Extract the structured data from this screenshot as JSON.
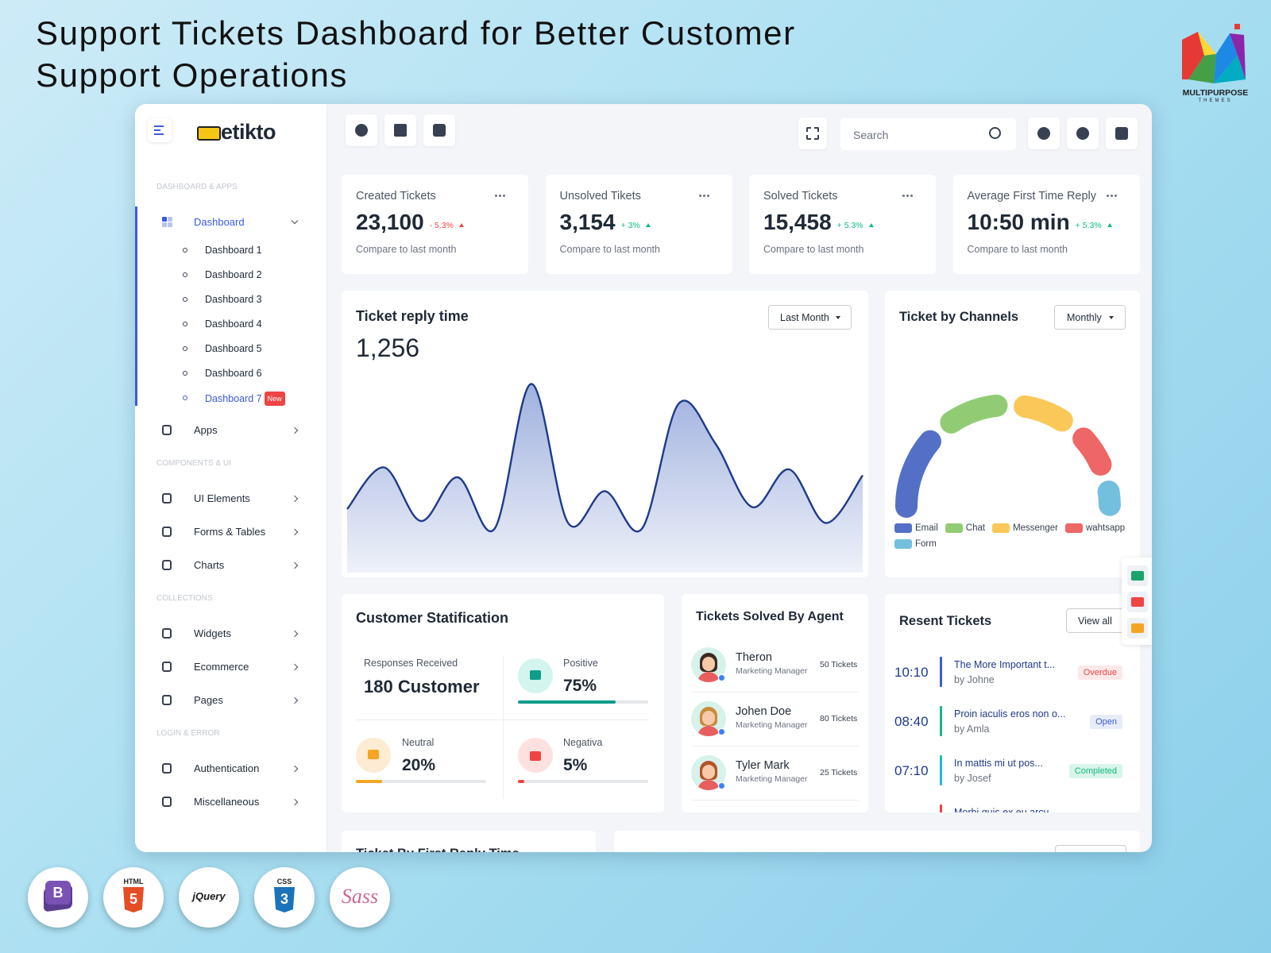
{
  "header": {
    "title_lines": [
      "Support Tickets Dashboard for Better Customer",
      "Support Operations"
    ],
    "brand": "MULTIPURPOSE",
    "brand_sub": "THEMES"
  },
  "app": {
    "logo": "etikto",
    "search_placeholder": "Search",
    "sidebar": [
      {
        "title": "DASHBOARD & APPS",
        "items": [
          {
            "label": "Dashboard",
            "active": true,
            "children": [
              {
                "label": "Dashboard 1"
              },
              {
                "label": "Dashboard 2"
              },
              {
                "label": "Dashboard 3"
              },
              {
                "label": "Dashboard 4"
              },
              {
                "label": "Dashboard 5"
              },
              {
                "label": "Dashboard 6"
              },
              {
                "label": "Dashboard 7",
                "active": true,
                "badge": "New"
              }
            ]
          },
          {
            "label": "Apps"
          }
        ]
      },
      {
        "title": "COMPONENTS & UI",
        "items": [
          {
            "label": "UI Elements"
          },
          {
            "label": "Forms & Tables"
          },
          {
            "label": "Charts"
          }
        ]
      },
      {
        "title": "COLLECTIONS",
        "items": [
          {
            "label": "Widgets"
          },
          {
            "label": "Ecommerce"
          },
          {
            "label": "Pages"
          }
        ]
      },
      {
        "title": "LOGIN & ERROR",
        "items": [
          {
            "label": "Authentication"
          },
          {
            "label": "Miscellaneous"
          }
        ]
      }
    ],
    "stats": [
      {
        "label": "Created Tickets",
        "value": "23,100",
        "change": "- 5.3%",
        "change_color": "#ef4444",
        "note": "Compare to last month"
      },
      {
        "label": "Unsolved Tikets",
        "value": "3,154",
        "change": "+ 3%",
        "change_color": "#10b981",
        "note": "Compare to last month"
      },
      {
        "label": "Solved Tickets",
        "value": "15,458",
        "change": "+ 5.3%",
        "change_color": "#10b981",
        "note": "Compare to last month"
      },
      {
        "label": "Average First Time Reply",
        "value": "10:50 min",
        "change": "+ 5.3%",
        "change_color": "#10b981",
        "note": "Compare to last month"
      }
    ],
    "reply": {
      "title": "Ticket reply time",
      "value": "1,256",
      "filter": "Last Month",
      "chart_data": {
        "type": "area",
        "categories": [
          null,
          null,
          null,
          null,
          null,
          null,
          null,
          null,
          null,
          null,
          null,
          null,
          null,
          null,
          null
        ],
        "values": [
          32,
          53,
          26,
          48,
          22,
          95,
          25,
          41,
          22,
          85,
          65,
          33,
          52,
          25,
          49
        ],
        "ylim": [
          0,
          100
        ],
        "color": "#1e3a8a"
      }
    },
    "channels": {
      "title": "Ticket by Channels",
      "filter": "Monthly",
      "chart_data": {
        "type": "gauge",
        "categories": [
          "Email",
          "Chat",
          "Messenger",
          "wahtsapp",
          "Form"
        ],
        "values": [
          32,
          22,
          18,
          14,
          6
        ],
        "colors": [
          "#5470c6",
          "#91cc75",
          "#fac858",
          "#ee6666",
          "#73c0de"
        ]
      }
    },
    "satisfaction": {
      "title": "Customer Statification",
      "responses_label": "Responses Received",
      "responses": "180 Customer",
      "metrics": [
        {
          "label": "Positive",
          "value": 75,
          "value_label": "75%",
          "color": "#0f9d8a",
          "bg": "#d4f4ee"
        },
        {
          "label": "Neutral",
          "value": 20,
          "value_label": "20%",
          "color": "#f5a524",
          "bg": "#fdebd3"
        },
        {
          "label": "Negativa",
          "value": 5,
          "value_label": "5%",
          "color": "#ef4444",
          "bg": "#fde1e1"
        }
      ]
    },
    "agents": {
      "title": "Tickets Solved By Agent",
      "rows": [
        {
          "name": "Theron",
          "role": "Marketing Manager",
          "tickets": "50 Tickets",
          "hair": "#3b2a20"
        },
        {
          "name": "Johen Doe",
          "role": "Marketing Manager",
          "tickets": "80 Tickets",
          "hair": "#c98a3a"
        },
        {
          "name": "Tyler Mark",
          "role": "Marketing Manager",
          "tickets": "25 Tickets",
          "hair": "#b4532a"
        }
      ]
    },
    "recent": {
      "title": "Resent Tickets",
      "button": "View all",
      "rows": [
        {
          "time": "10:10",
          "title": "The More Important t...",
          "by": "by Johne",
          "status": "Overdue",
          "color": "#3b5bdb",
          "status_color": "#ef4444",
          "status_bg": "#fde8e8"
        },
        {
          "time": "08:40",
          "title": "Proin iaculis eros non o...",
          "by": "by Amla",
          "status": "Open",
          "color": "#10b981",
          "status_color": "#3b5bdb",
          "status_bg": "#e7ecfb"
        },
        {
          "time": "07:10",
          "title": "In mattis mi ut pos...",
          "by": "by Josef",
          "status": "Completed",
          "color": "#22b8cf",
          "status_color": "#10b981",
          "status_bg": "#d9f5ea"
        },
        {
          "title": "Morbi quis ex eu arcu",
          "color": "#ef4444"
        }
      ]
    },
    "bottom": {
      "title": "Ticket By First Reply Time"
    }
  },
  "badges": [
    {
      "label": "B",
      "bg": "#7952b3"
    },
    {
      "label": "HTML",
      "mark": "5",
      "bg": "#e44d26"
    },
    {
      "label": "jQuery"
    },
    {
      "label": "CSS",
      "mark": "3",
      "bg": "#1b73ba"
    },
    {
      "label": "Sass"
    }
  ]
}
